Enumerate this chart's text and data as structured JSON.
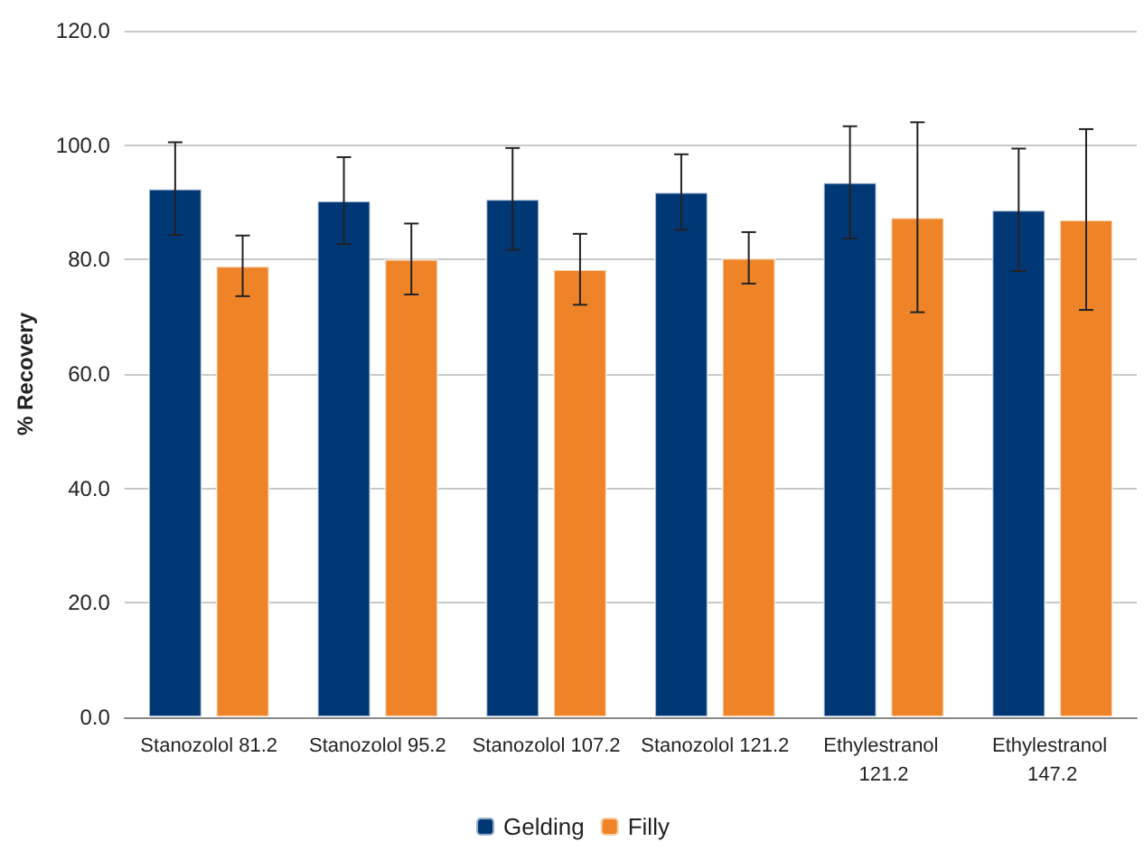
{
  "chart_data": {
    "type": "bar",
    "ylabel": "% Recovery",
    "categories": [
      "Stanozolol 81.2",
      "Stanozolol 95.2",
      "Stanozolol 107.2",
      "Stanozolol 121.2",
      "Ethylestranol 121.2",
      "Ethylestranol 147.2"
    ],
    "series": [
      {
        "name": "Gelding",
        "color": "#003876",
        "values": [
          92.4,
          90.3,
          90.6,
          91.8,
          93.5,
          88.7
        ],
        "errors": [
          8.1,
          7.6,
          8.9,
          6.6,
          9.8,
          10.7
        ]
      },
      {
        "name": "Filly",
        "color": "#ee8427",
        "values": [
          78.9,
          80.1,
          78.3,
          80.3,
          87.4,
          87.0
        ],
        "errors": [
          5.3,
          6.2,
          6.2,
          4.5,
          16.6,
          15.8
        ]
      }
    ],
    "ylim": [
      0,
      120
    ],
    "yticks": [
      {
        "value": 0,
        "label": "0.0"
      },
      {
        "value": 20,
        "label": "20.0"
      },
      {
        "value": 40,
        "label": "40.0"
      },
      {
        "value": 60,
        "label": "60.0"
      },
      {
        "value": 80,
        "label": "80.0"
      },
      {
        "value": 100,
        "label": "100.0"
      },
      {
        "value": 120,
        "label": "120.0"
      }
    ],
    "grid": "y",
    "legend": "bottom"
  }
}
